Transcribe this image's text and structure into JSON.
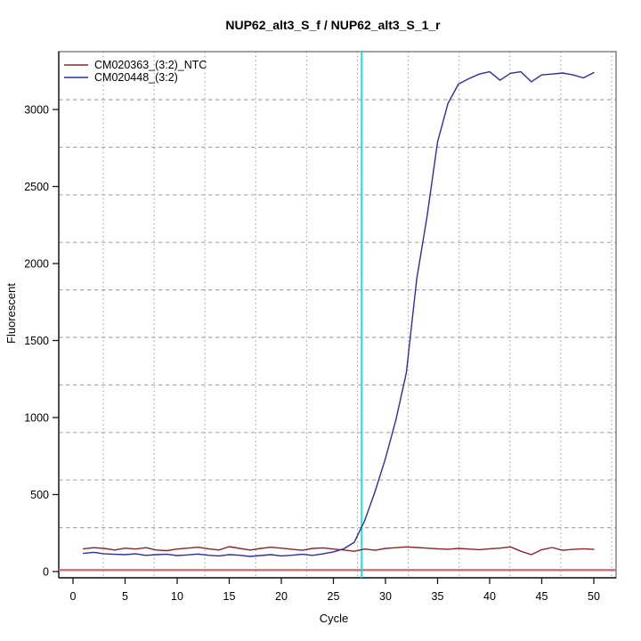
{
  "chart_data": {
    "type": "line",
    "title": "NUP62_alt3_S_f / NUP62_alt3_S_1_r",
    "xlabel": "Cycle",
    "ylabel": "Fluorescent",
    "x_ticks": [
      0,
      5,
      10,
      15,
      20,
      25,
      30,
      35,
      40,
      45,
      50
    ],
    "y_ticks": [
      0,
      500,
      1000,
      1500,
      2000,
      2500,
      3000
    ],
    "xlim": [
      0,
      52
    ],
    "ylim": [
      0,
      3375
    ],
    "grid": "dotted-gray",
    "legend_position": "top-left",
    "cycles": [
      1,
      2,
      3,
      4,
      5,
      6,
      7,
      8,
      9,
      10,
      11,
      12,
      13,
      14,
      15,
      16,
      17,
      18,
      19,
      20,
      21,
      22,
      23,
      24,
      25,
      26,
      27,
      28,
      29,
      30,
      31,
      32,
      33,
      34,
      35,
      36,
      37,
      38,
      39,
      40,
      41,
      42,
      43,
      44,
      45,
      46,
      47,
      48,
      49,
      50
    ],
    "series": [
      {
        "name": "CM020363_(3:2)_NTC",
        "color": "#8b2525",
        "values": [
          148,
          155,
          150,
          140,
          152,
          146,
          155,
          140,
          136,
          146,
          152,
          158,
          148,
          140,
          162,
          150,
          140,
          150,
          158,
          152,
          145,
          138,
          150,
          154,
          146,
          140,
          132,
          146,
          138,
          150,
          155,
          160,
          156,
          152,
          148,
          145,
          150,
          146,
          142,
          148,
          152,
          160,
          132,
          110,
          142,
          156,
          138,
          144,
          148,
          144
        ]
      },
      {
        "name": "CM020448_(3:2)",
        "color": "#2d2da6",
        "values": [
          118,
          125,
          115,
          112,
          110,
          115,
          105,
          110,
          112,
          104,
          108,
          114,
          106,
          102,
          110,
          106,
          98,
          104,
          110,
          102,
          106,
          112,
          105,
          115,
          128,
          148,
          190,
          330,
          520,
          735,
          985,
          1290,
          1900,
          2310,
          2790,
          3040,
          3165,
          3200,
          3230,
          3245,
          3190,
          3235,
          3245,
          3180,
          3225,
          3230,
          3237,
          3225,
          3205,
          3240
        ]
      }
    ],
    "threshold_line": {
      "value": 10,
      "color": "#c87272"
    },
    "ct_line": {
      "cycle": 27.7,
      "color": "#00dde8"
    },
    "colors": {
      "grid": "#aaaaaa",
      "box": "#7a7a7a",
      "axis": "#1a1a1a"
    }
  }
}
